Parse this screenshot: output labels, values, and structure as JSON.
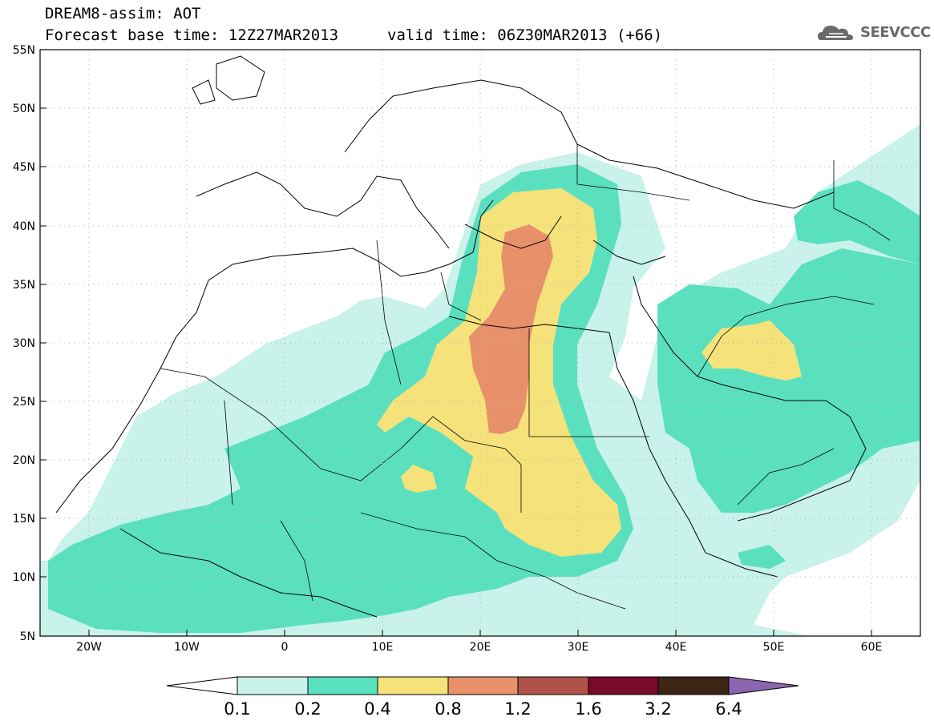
{
  "header": {
    "line1": "DREAM8-assim: AOT",
    "line2": "Forecast base time: 12Z27MAR2013",
    "valid": "valid time: 06Z30MAR2013 (+66)",
    "logo_text": "SEEVCCC"
  },
  "map": {
    "lat_labels": [
      "55N",
      "50N",
      "45N",
      "40N",
      "35N",
      "30N",
      "25N",
      "20N",
      "15N",
      "10N",
      "5N"
    ],
    "lon_labels": [
      "20W",
      "10W",
      "0",
      "10E",
      "20E",
      "30E",
      "40E",
      "50E",
      "60E"
    ],
    "lat_range": [
      5,
      55
    ],
    "lon_range": [
      -25,
      65
    ],
    "grid": "dotted"
  },
  "colorbar": {
    "levels": [
      "0.1",
      "0.2",
      "0.4",
      "0.8",
      "1.2",
      "1.6",
      "3.2",
      "6.4"
    ],
    "colors": [
      "#ffffff",
      "#c8f2ea",
      "#5be0bf",
      "#f5e27a",
      "#e8906a",
      "#b0524a",
      "#7a0a2a",
      "#3d2616",
      "#8a66b0"
    ]
  },
  "colors": {
    "c01": "#c8f2ea",
    "c02": "#5be0bf",
    "c04": "#f5e27a",
    "c08": "#e8906a",
    "c12": "#b0524a",
    "c16": "#7a0a2a",
    "c32": "#3d2616",
    "c64": "#8a66b0"
  }
}
